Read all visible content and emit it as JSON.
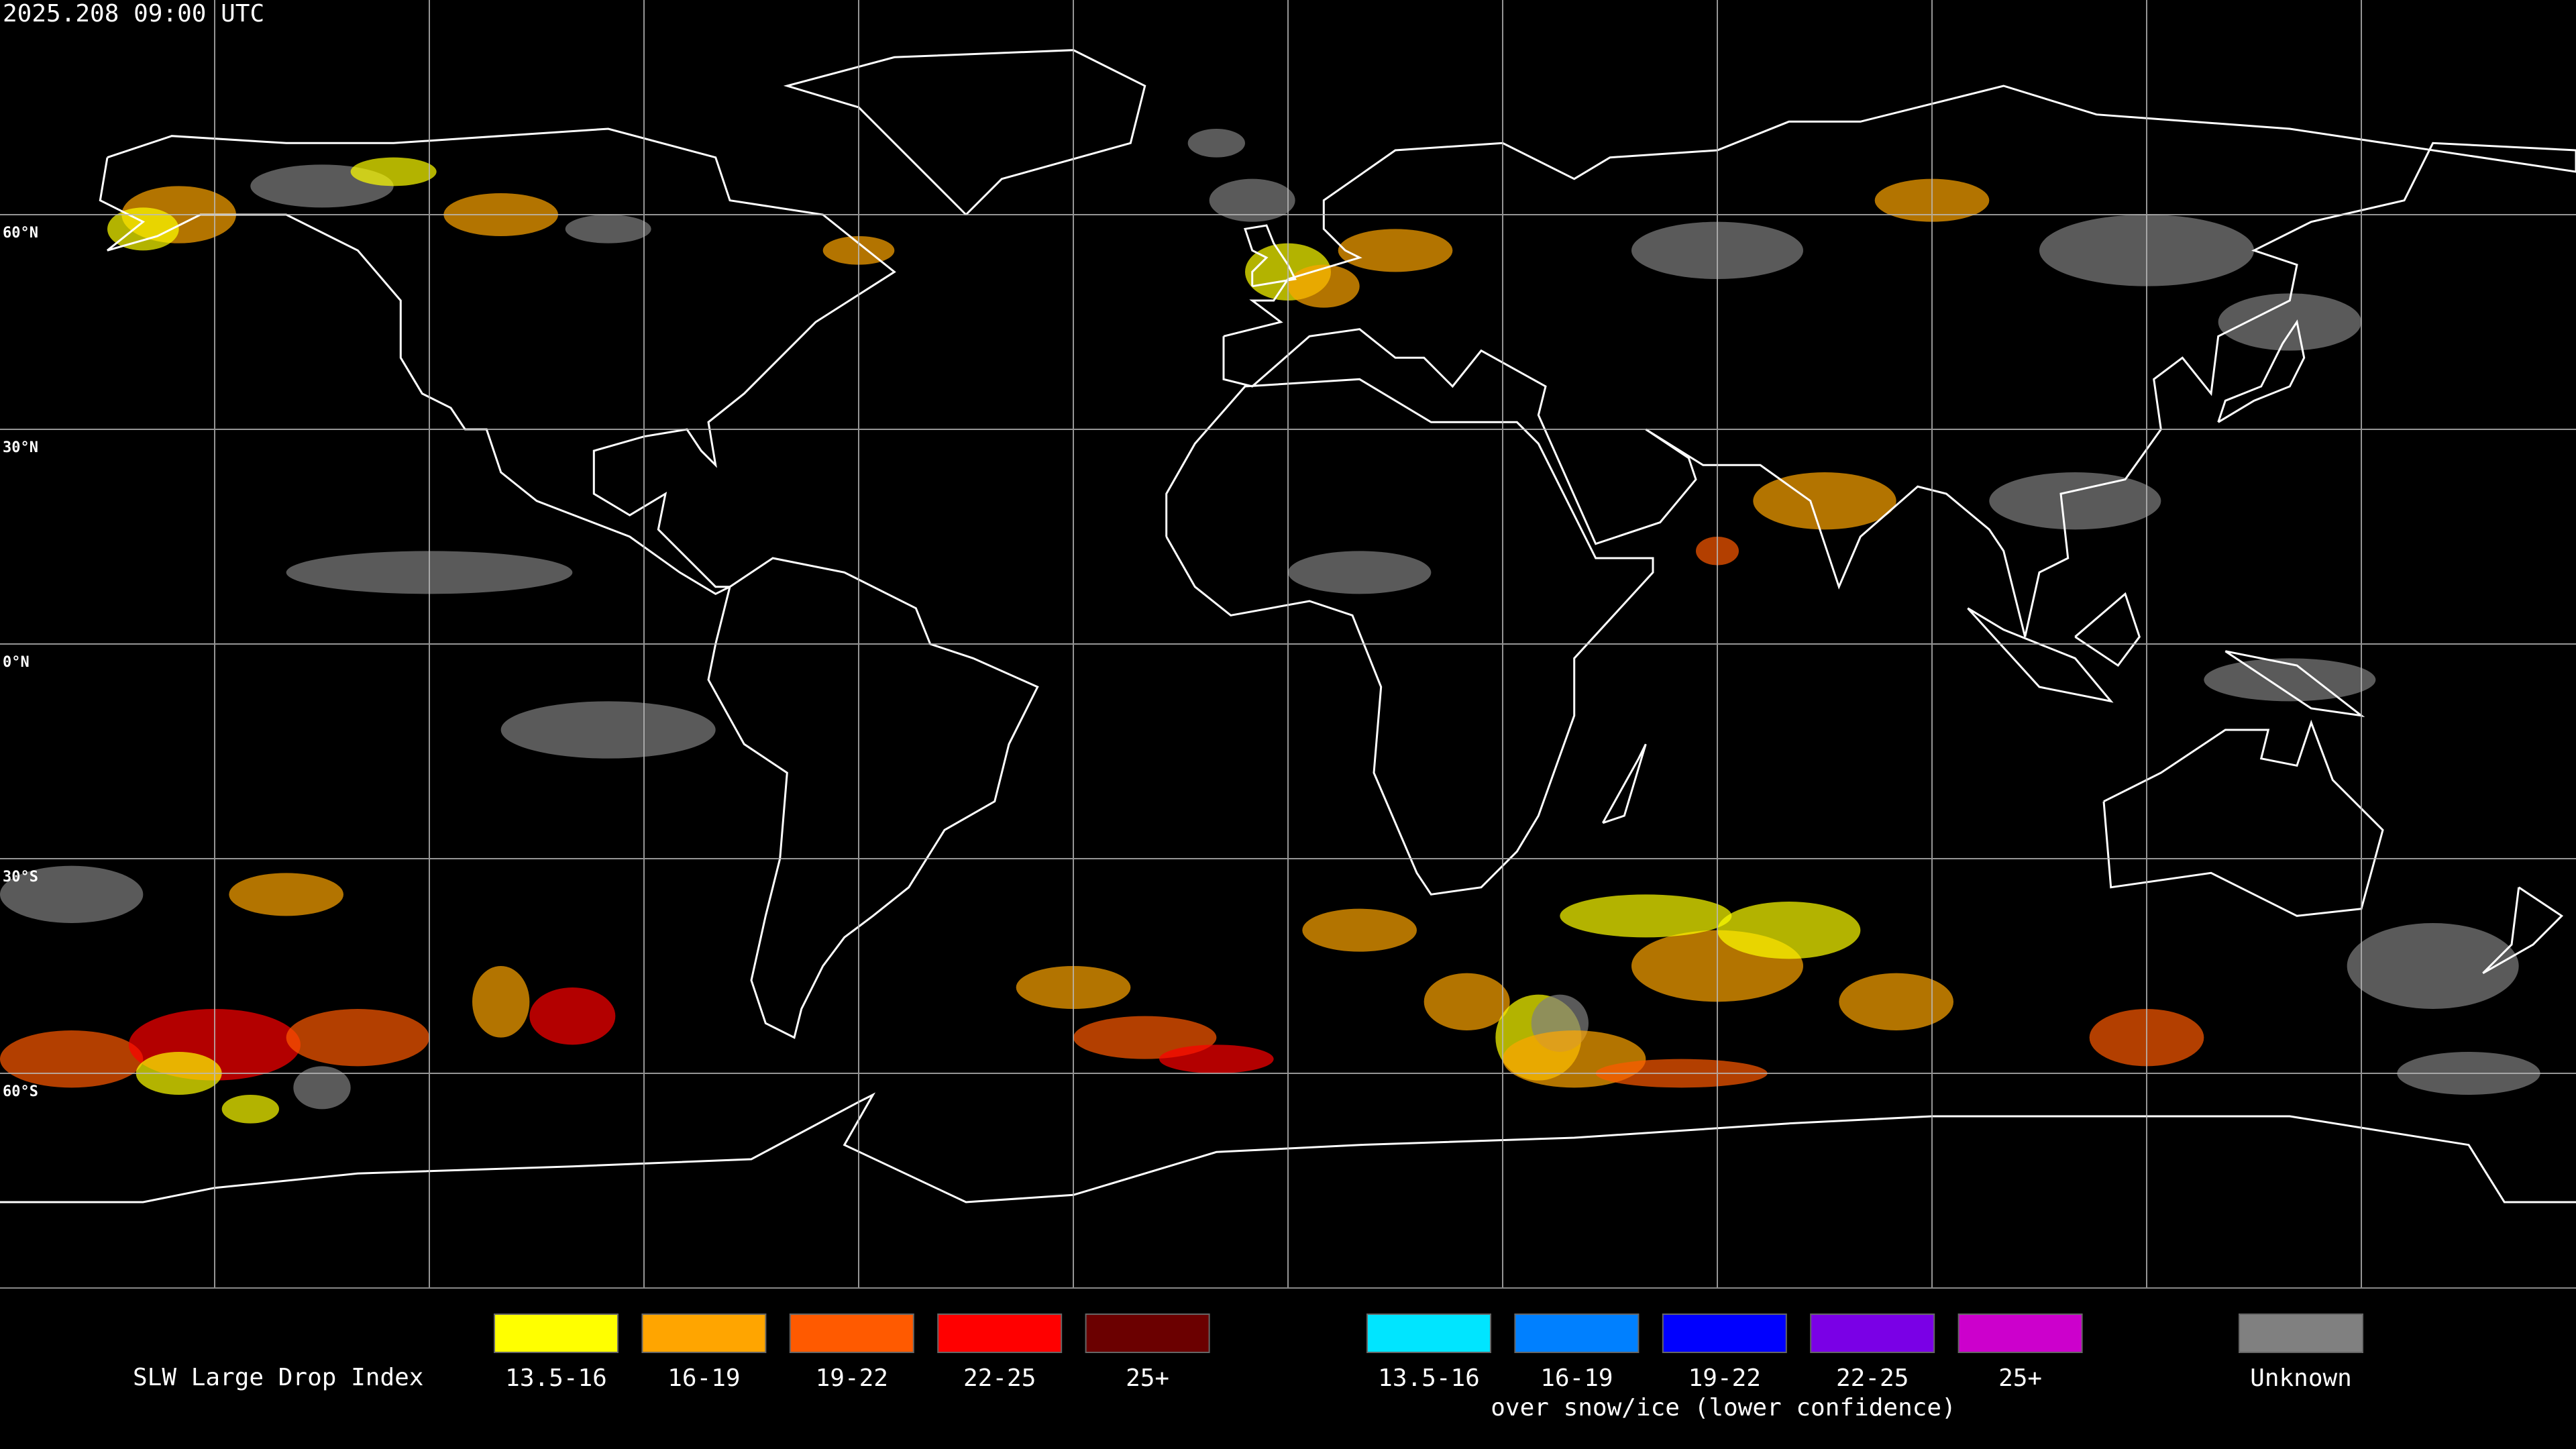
{
  "header": {
    "timestamp": "2025.208 09:00 UTC"
  },
  "map": {
    "lat_labels": [
      "60°N",
      "30°N",
      "0°N",
      "30°S",
      "60°S"
    ]
  },
  "legend": {
    "title": "SLW Large Drop Index",
    "swatches": [
      {
        "label": "13.5-16",
        "color": "#ffff00"
      },
      {
        "label": "16-19",
        "color": "#ffa500"
      },
      {
        "label": "19-22",
        "color": "#ff5a00"
      },
      {
        "label": "22-25",
        "color": "#ff0000"
      },
      {
        "label": "25+",
        "color": "#6b0000"
      }
    ],
    "snow_swatches": [
      {
        "label": "13.5-16",
        "color": "#00e5ff"
      },
      {
        "label": "16-19",
        "color": "#0080ff"
      },
      {
        "label": "19-22",
        "color": "#0000ff"
      },
      {
        "label": "22-25",
        "color": "#7a00e6"
      },
      {
        "label": "25+",
        "color": "#cc00cc"
      }
    ],
    "snow_caption": "over snow/ice (lower confidence)",
    "unknown": {
      "label": "Unknown",
      "color": "#808080"
    }
  }
}
